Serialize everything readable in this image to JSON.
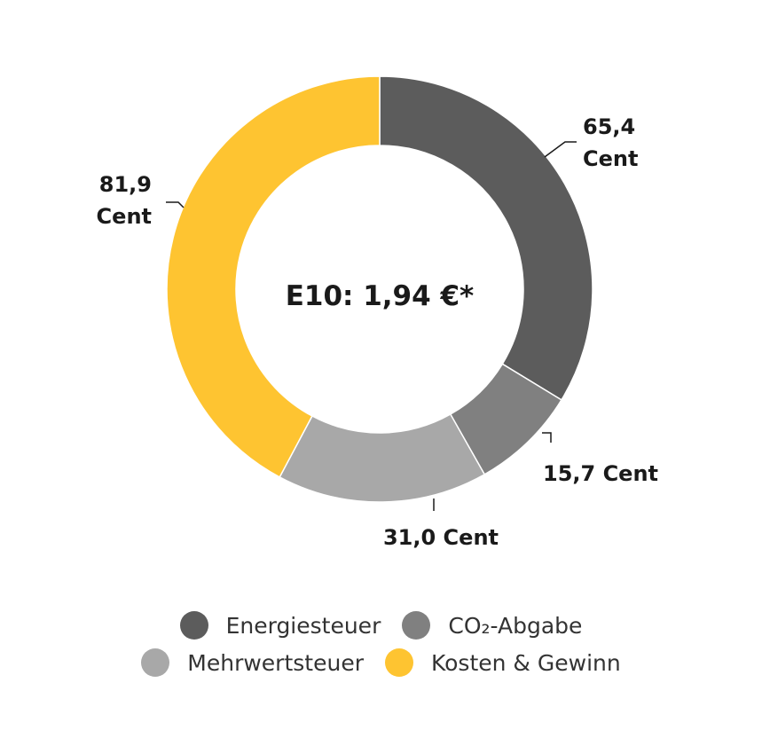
{
  "chart_data": {
    "type": "pie",
    "title": "E10: 1,94 €*",
    "unit": "Cent",
    "slices": [
      {
        "name": "Energiesteuer",
        "value": 65.4,
        "label": "65,4 Cent",
        "color": "#5c5c5c"
      },
      {
        "name": "CO₂-Abgabe",
        "value": 15.7,
        "label": "15,7 Cent",
        "color": "#808080"
      },
      {
        "name": "Mehrwertsteuer",
        "value": 31.0,
        "label": "31,0 Cent",
        "color": "#a8a8a8"
      },
      {
        "name": "Kosten & Gewinn",
        "value": 81.9,
        "label": "81,9 Cent",
        "color": "#fec431"
      }
    ],
    "legend": {
      "placement": "bottom",
      "rows": [
        [
          "Energiesteuer",
          "CO₂-Abgabe"
        ],
        [
          "Mehrwertsteuer",
          "Kosten & Gewinn"
        ]
      ]
    }
  }
}
